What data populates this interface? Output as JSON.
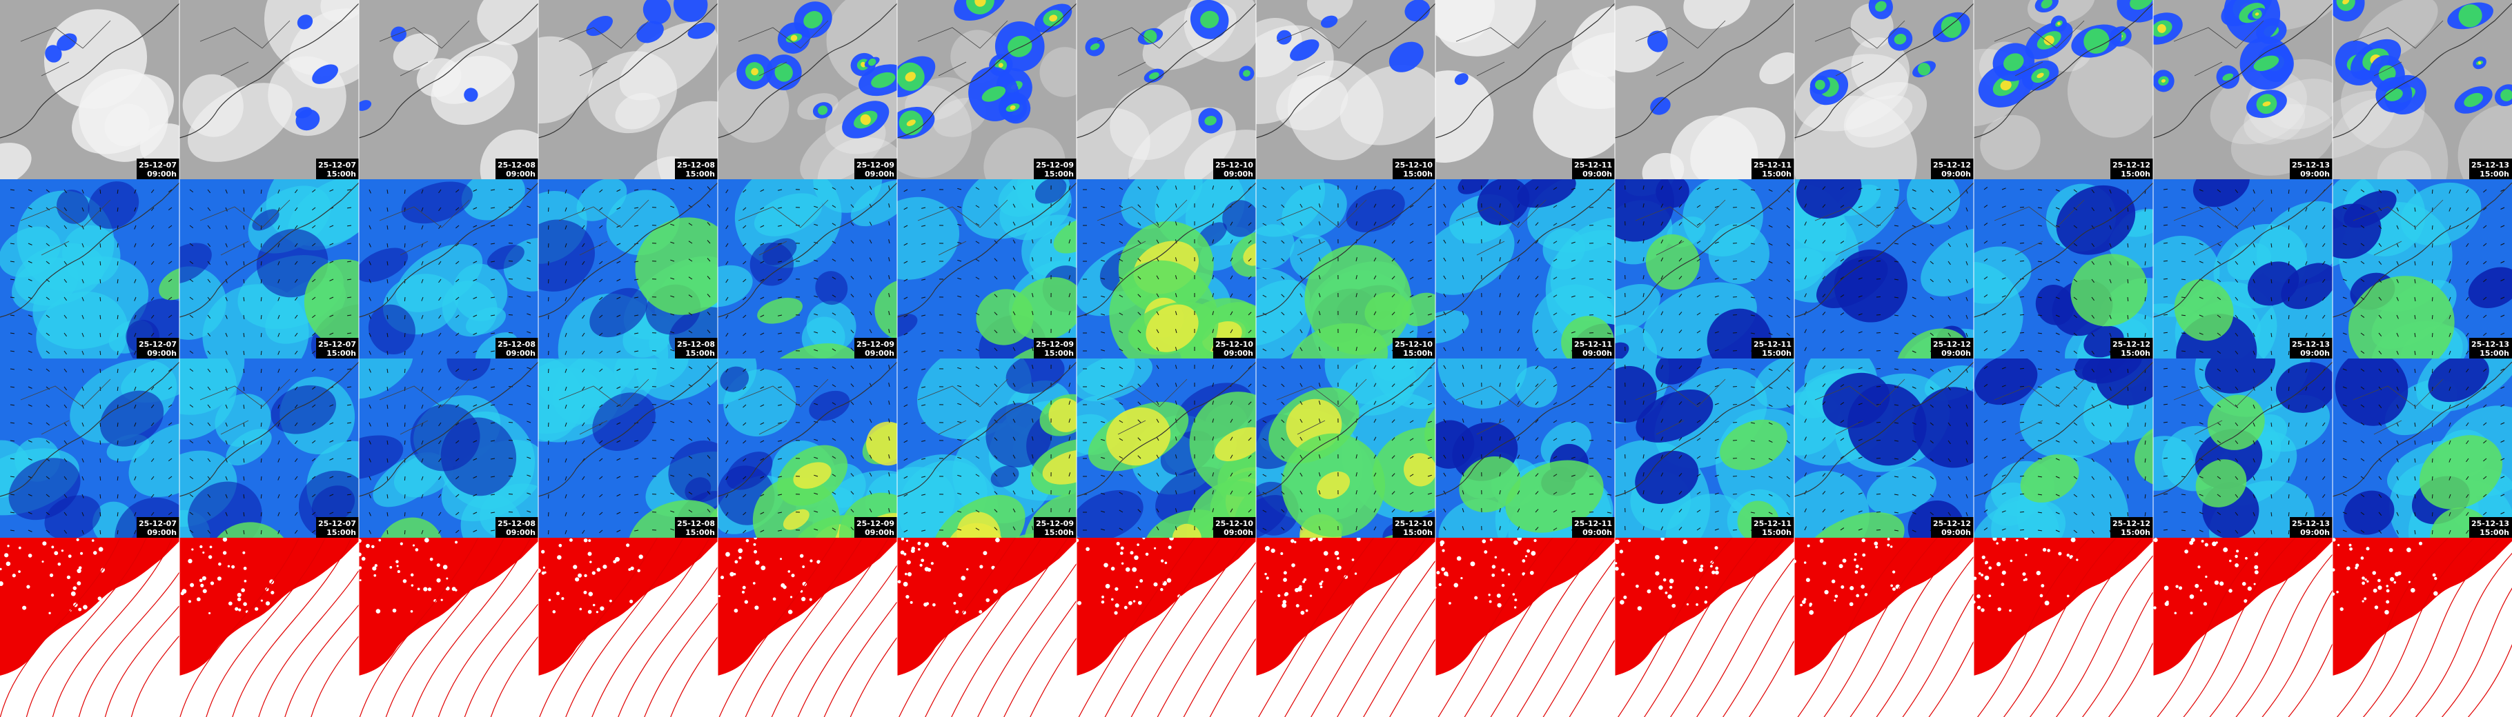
{
  "columns": [
    {
      "date": "25-12-07",
      "time": "09:00h"
    },
    {
      "date": "25-12-07",
      "time": "15:00h"
    },
    {
      "date": "25-12-08",
      "time": "09:00h"
    },
    {
      "date": "25-12-08",
      "time": "15:00h"
    },
    {
      "date": "25-12-09",
      "time": "09:00h"
    },
    {
      "date": "25-12-09",
      "time": "15:00h"
    },
    {
      "date": "25-12-10",
      "time": "09:00h"
    },
    {
      "date": "25-12-10",
      "time": "15:00h"
    },
    {
      "date": "25-12-11",
      "time": "09:00h"
    },
    {
      "date": "25-12-11",
      "time": "15:00h"
    },
    {
      "date": "25-12-12",
      "time": "09:00h"
    },
    {
      "date": "25-12-12",
      "time": "15:00h"
    },
    {
      "date": "25-12-13",
      "time": "09:00h"
    },
    {
      "date": "25-12-13",
      "time": "15:00h"
    }
  ]
}
